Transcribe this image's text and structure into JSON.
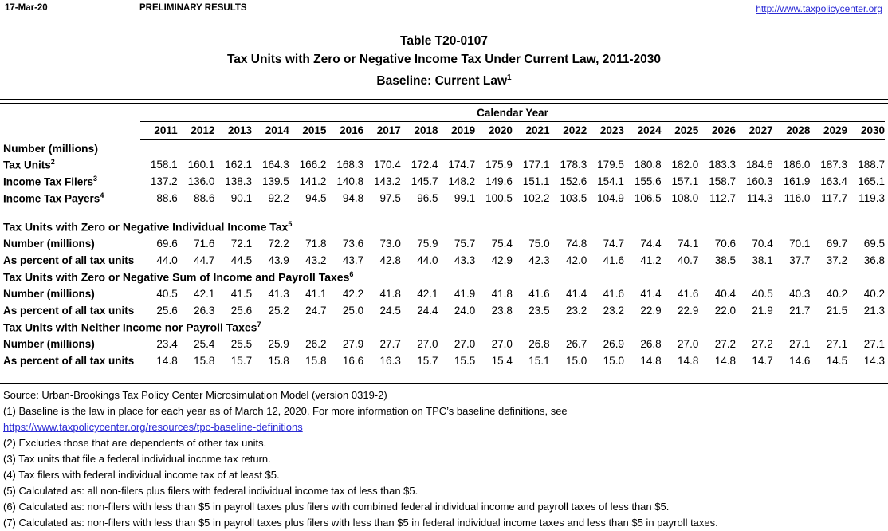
{
  "page": {
    "background": "#ffffff",
    "text_color": "#000000",
    "link_color": "#2b2bd5"
  },
  "header": {
    "date": "17-Mar-20",
    "preliminary": "PRELIMINARY RESULTS",
    "site_url": "http://www.taxpolicycenter.org"
  },
  "title": {
    "line1": "Table T20-0107",
    "line2": "Tax Units with Zero or Negative Income Tax Under Current Law, 2011-2030",
    "line3": "Baseline: Current Law",
    "line3_sup": "1"
  },
  "table": {
    "calendar_year_label": "Calendar Year",
    "years": [
      "2011",
      "2012",
      "2013",
      "2014",
      "2015",
      "2016",
      "2017",
      "2018",
      "2019",
      "2020",
      "2021",
      "2022",
      "2023",
      "2024",
      "2025",
      "2026",
      "2027",
      "2028",
      "2029",
      "2030"
    ],
    "sections": [
      {
        "header": "Number (millions)",
        "header_sup": "",
        "rows": [
          {
            "label": "Tax Units",
            "sup": "2",
            "values": [
              "158.1",
              "160.1",
              "162.1",
              "164.3",
              "166.2",
              "168.3",
              "170.4",
              "172.4",
              "174.7",
              "175.9",
              "177.1",
              "178.3",
              "179.5",
              "180.8",
              "182.0",
              "183.3",
              "184.6",
              "186.0",
              "187.3",
              "188.7"
            ]
          },
          {
            "label": "Income Tax Filers",
            "sup": "3",
            "values": [
              "137.2",
              "136.0",
              "138.3",
              "139.5",
              "141.2",
              "140.8",
              "143.2",
              "145.7",
              "148.2",
              "149.6",
              "151.1",
              "152.6",
              "154.1",
              "155.6",
              "157.1",
              "158.7",
              "160.3",
              "161.9",
              "163.4",
              "165.1"
            ]
          },
          {
            "label": "Income Tax Payers",
            "sup": "4",
            "values": [
              "88.6",
              "88.6",
              "90.1",
              "92.2",
              "94.5",
              "94.8",
              "97.5",
              "96.5",
              "99.1",
              "100.5",
              "102.2",
              "103.5",
              "104.9",
              "106.5",
              "108.0",
              "112.7",
              "114.3",
              "116.0",
              "117.7",
              "119.3"
            ]
          }
        ]
      },
      {
        "header": "Tax Units with Zero or Negative Individual Income Tax",
        "header_sup": "5",
        "rows": [
          {
            "label": "Number (millions)",
            "sup": "",
            "values": [
              "69.6",
              "71.6",
              "72.1",
              "72.2",
              "71.8",
              "73.6",
              "73.0",
              "75.9",
              "75.7",
              "75.4",
              "75.0",
              "74.8",
              "74.7",
              "74.4",
              "74.1",
              "70.6",
              "70.4",
              "70.1",
              "69.7",
              "69.5"
            ]
          },
          {
            "label": "As percent of all tax units",
            "sup": "",
            "values": [
              "44.0",
              "44.7",
              "44.5",
              "43.9",
              "43.2",
              "43.7",
              "42.8",
              "44.0",
              "43.3",
              "42.9",
              "42.3",
              "42.0",
              "41.6",
              "41.2",
              "40.7",
              "38.5",
              "38.1",
              "37.7",
              "37.2",
              "36.8"
            ]
          }
        ]
      },
      {
        "header": "Tax Units with Zero or Negative Sum of Income and Payroll Taxes",
        "header_sup": "6",
        "rows": [
          {
            "label": "Number (millions)",
            "sup": "",
            "values": [
              "40.5",
              "42.1",
              "41.5",
              "41.3",
              "41.1",
              "42.2",
              "41.8",
              "42.1",
              "41.9",
              "41.8",
              "41.6",
              "41.4",
              "41.6",
              "41.4",
              "41.6",
              "40.4",
              "40.5",
              "40.3",
              "40.2",
              "40.2"
            ]
          },
          {
            "label": "As percent of all tax units",
            "sup": "",
            "values": [
              "25.6",
              "26.3",
              "25.6",
              "25.2",
              "24.7",
              "25.0",
              "24.5",
              "24.4",
              "24.0",
              "23.8",
              "23.5",
              "23.2",
              "23.2",
              "22.9",
              "22.9",
              "22.0",
              "21.9",
              "21.7",
              "21.5",
              "21.3"
            ]
          }
        ]
      },
      {
        "header": "Tax Units with Neither Income nor Payroll Taxes",
        "header_sup": "7",
        "rows": [
          {
            "label": "Number (millions)",
            "sup": "",
            "values": [
              "23.4",
              "25.4",
              "25.5",
              "25.9",
              "26.2",
              "27.9",
              "27.7",
              "27.0",
              "27.0",
              "27.0",
              "26.8",
              "26.7",
              "26.9",
              "26.8",
              "27.0",
              "27.2",
              "27.2",
              "27.1",
              "27.1",
              "27.1"
            ]
          },
          {
            "label": "As percent of all tax units",
            "sup": "",
            "values": [
              "14.8",
              "15.8",
              "15.7",
              "15.8",
              "15.8",
              "16.6",
              "16.3",
              "15.7",
              "15.5",
              "15.4",
              "15.1",
              "15.0",
              "15.0",
              "14.8",
              "14.8",
              "14.8",
              "14.7",
              "14.6",
              "14.5",
              "14.3"
            ]
          }
        ]
      }
    ]
  },
  "footnotes": [
    {
      "type": "text",
      "text": "Source: Urban-Brookings Tax Policy Center Microsimulation Model (version 0319-2)"
    },
    {
      "type": "text",
      "text": "(1) Baseline is the law in place for each year as of March 12, 2020. For more information on TPC’s baseline definitions, see"
    },
    {
      "type": "link",
      "text": "https://www.taxpolicycenter.org/resources/tpc-baseline-definitions"
    },
    {
      "type": "text",
      "text": "(2) Excludes those that are dependents of other tax units."
    },
    {
      "type": "text",
      "text": "(3) Tax units that file a federal individual income tax return."
    },
    {
      "type": "text",
      "text": "(4) Tax filers with federal individual income tax of at least $5."
    },
    {
      "type": "text",
      "text": "(5) Calculated as: all non-filers plus filers with federal individual income tax of less than $5."
    },
    {
      "type": "text",
      "text": "(6) Calculated as: non-filers with less than $5 in payroll taxes plus filers with combined federal individual income and payroll taxes of less than $5."
    },
    {
      "type": "text",
      "text": "(7) Calculated as: non-filers with less than $5 in payroll taxes plus filers with less than $5 in federal individual income taxes and less than $5 in payroll taxes."
    }
  ]
}
